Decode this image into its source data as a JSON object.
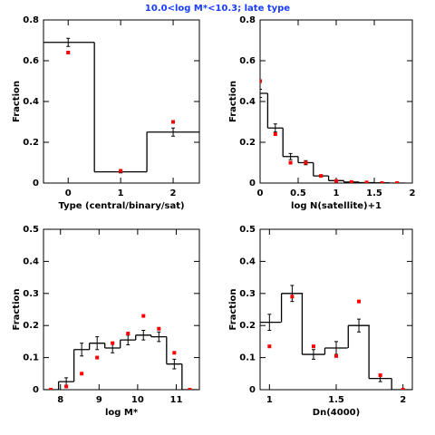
{
  "title": "10.0<log M*<10.3; late type",
  "chart_data": [
    {
      "type": "step",
      "x_label": "Type (central/binary/sat)",
      "y_label": "Fraction",
      "xlim": [
        -0.47,
        2.5
      ],
      "xticks": [
        0,
        1,
        2
      ],
      "ylim": [
        0,
        0.8
      ],
      "yticks": [
        0,
        0.2,
        0.4,
        0.6,
        0.8
      ],
      "x": [
        0,
        1,
        2
      ],
      "series": [
        {
          "color": "#000000",
          "values": [
            0.69,
            0.055,
            0.25
          ],
          "errors": [
            0.02,
            0.005,
            0.02
          ]
        },
        {
          "color": "#ff0000",
          "values": [
            0.64,
            0.06,
            0.3
          ]
        }
      ]
    },
    {
      "type": "step",
      "x_label": "log N(satellite)+1",
      "y_label": "Fraction",
      "xlim": [
        0,
        2
      ],
      "xticks": [
        0,
        0.5,
        1,
        1.5,
        2
      ],
      "ylim": [
        0,
        0.8
      ],
      "yticks": [
        0,
        0.2,
        0.4,
        0.6,
        0.8
      ],
      "x": [
        0,
        0.2,
        0.4,
        0.6,
        0.8,
        1.0,
        1.2,
        1.4,
        1.6,
        1.8
      ],
      "series": [
        {
          "color": "#000000",
          "values": [
            0.44,
            0.27,
            0.13,
            0.1,
            0.035,
            0.012,
            0.005,
            0.002,
            0.001,
            0
          ],
          "errors": [
            0.02,
            0.02,
            0.015,
            0.01,
            0.005,
            0.003,
            0.002,
            0.001,
            0.001,
            0
          ]
        },
        {
          "color": "#ff0000",
          "values": [
            0.5,
            0.24,
            0.1,
            0.1,
            0.035,
            0.01,
            0.005,
            0.003,
            0,
            0
          ]
        }
      ]
    },
    {
      "type": "step",
      "x_label": "log M*",
      "y_label": "Fraction",
      "xlim": [
        7.56,
        11.6
      ],
      "xticks": [
        8,
        9,
        10,
        11
      ],
      "ylim": [
        0,
        0.5
      ],
      "yticks": [
        0,
        0.1,
        0.2,
        0.3,
        0.4,
        0.5
      ],
      "x": [
        7.75,
        8.15,
        8.55,
        8.95,
        9.35,
        9.75,
        10.15,
        10.55,
        10.95,
        11.35
      ],
      "series": [
        {
          "color": "#000000",
          "values": [
            0,
            0.025,
            0.125,
            0.145,
            0.13,
            0.155,
            0.17,
            0.165,
            0.08,
            0
          ],
          "errors": [
            0,
            0.012,
            0.02,
            0.02,
            0.015,
            0.015,
            0.015,
            0.015,
            0.015,
            0
          ]
        },
        {
          "color": "#ff0000",
          "values": [
            0,
            0.01,
            0.05,
            0.1,
            0.145,
            0.175,
            0.23,
            0.19,
            0.115,
            0
          ]
        }
      ]
    },
    {
      "type": "step",
      "x_label": "Dn(4000)",
      "y_label": "Fraction",
      "xlim": [
        0.93,
        2.07
      ],
      "xticks": [
        1,
        1.5,
        2
      ],
      "ylim": [
        0,
        0.5
      ],
      "yticks": [
        0,
        0.1,
        0.2,
        0.3,
        0.4,
        0.5
      ],
      "x": [
        1.0,
        1.17,
        1.33,
        1.5,
        1.67,
        1.83,
        2.0
      ],
      "series": [
        {
          "color": "#000000",
          "values": [
            0.21,
            0.3,
            0.11,
            0.13,
            0.2,
            0.035,
            0
          ],
          "errors": [
            0.025,
            0.025,
            0.015,
            0.02,
            0.02,
            0.01,
            0
          ]
        },
        {
          "color": "#ff0000",
          "values": [
            0.135,
            0.29,
            0.135,
            0.105,
            0.275,
            0.045,
            0
          ]
        }
      ]
    }
  ]
}
